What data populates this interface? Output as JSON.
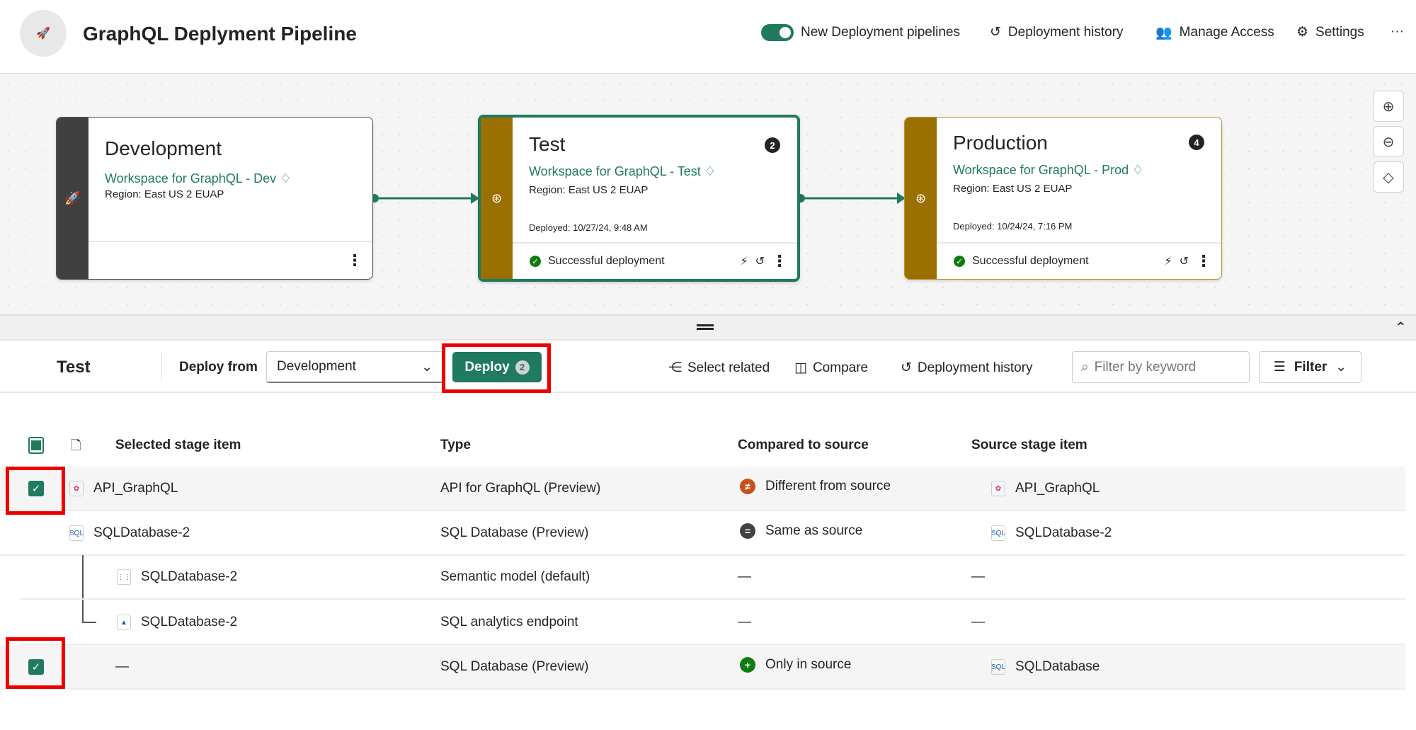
{
  "header": {
    "title": "GraphQL Deplyment Pipeline",
    "toggle_label": "New Deployment pipelines",
    "toggle_on": true,
    "history": "Deployment history",
    "access": "Manage Access",
    "settings": "Settings",
    "more": "···"
  },
  "stages": [
    {
      "name": "Development",
      "workspace": "Workspace for GraphQL - Dev",
      "region": "Region: East US 2 EUAP",
      "stripe_color": "#404040"
    },
    {
      "name": "Test",
      "workspace": "Workspace for GraphQL - Test",
      "region": "Region: East US 2 EUAP",
      "deployed": "Deployed: 10/27/24, 9:48 AM",
      "status": "Successful deployment",
      "badge": "2",
      "stripe_color": "#9a7000",
      "selected": true
    },
    {
      "name": "Production",
      "workspace": "Workspace for GraphQL - Prod",
      "region": "Region: East US 2 EUAP",
      "deployed": "Deployed: 10/24/24, 7:16 PM",
      "status": "Successful deployment",
      "badge": "4",
      "stripe_color": "#9a7000"
    }
  ],
  "toolbar": {
    "stage": "Test",
    "deploy_from_label": "Deploy from",
    "deploy_from_value": "Development",
    "deploy_label": "Deploy",
    "deploy_count": "2",
    "select_related": "Select related",
    "compare": "Compare",
    "history": "Deployment history",
    "filter_placeholder": "Filter by keyword",
    "filter": "Filter"
  },
  "table": {
    "headers": [
      "Selected stage item",
      "Type",
      "Compared to source",
      "Source stage item"
    ],
    "rows": [
      {
        "checked": true,
        "name": "API_GraphQL",
        "type": "API for GraphQL (Preview)",
        "compare": "Different from source",
        "source": "API_GraphQL"
      },
      {
        "checked": false,
        "name": "SQLDatabase-2",
        "type": "SQL Database (Preview)",
        "compare": "Same as source",
        "source": "SQLDatabase-2"
      },
      {
        "checked": false,
        "name": "SQLDatabase-2",
        "type": "Semantic model (default)",
        "compare": "—",
        "source": "—"
      },
      {
        "checked": false,
        "name": "SQLDatabase-2",
        "type": "SQL analytics endpoint",
        "compare": "—",
        "source": "—"
      },
      {
        "checked": true,
        "name": "—",
        "type": "SQL Database (Preview)",
        "compare": "Only in source",
        "source": "SQLDatabase"
      }
    ]
  },
  "colors": {
    "accent": "#1f7a5f",
    "stage_gold": "#9a7000",
    "highlight": "#e00000",
    "different": "#c8511b",
    "same": "#424242",
    "only": "#107c10"
  }
}
